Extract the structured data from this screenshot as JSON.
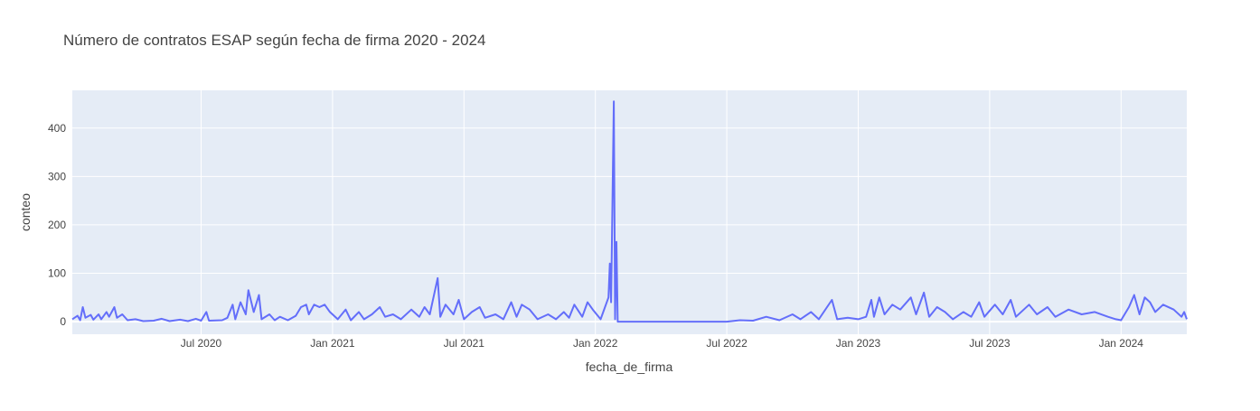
{
  "chart_data": {
    "type": "line",
    "title": "Número de contratos ESAP según fecha de firma 2020 - 2024",
    "x_label": "fecha_de_firma",
    "y_label": "conteo",
    "xlim": [
      2020.01,
      2024.25
    ],
    "xticks": [
      {
        "value": 2020.5,
        "label": "Jul 2020"
      },
      {
        "value": 2021,
        "label": "Jan 2021"
      },
      {
        "value": 2021.5,
        "label": "Jul 2021"
      },
      {
        "value": 2022,
        "label": "Jan 2022"
      },
      {
        "value": 2022.5,
        "label": "Jul 2022"
      },
      {
        "value": 2023,
        "label": "Jan 2023"
      },
      {
        "value": 2023.5,
        "label": "Jul 2023"
      },
      {
        "value": 2024,
        "label": "Jan 2024"
      }
    ],
    "ylim": [
      -26,
      478
    ],
    "yticks": [
      0,
      100,
      200,
      300,
      400
    ],
    "grid": true,
    "series": [
      {
        "color": "#636efa",
        "x": [
          2020.01,
          2020.03,
          2020.04,
          2020.05,
          2020.06,
          2020.08,
          2020.09,
          2020.11,
          2020.12,
          2020.14,
          2020.15,
          2020.17,
          2020.18,
          2020.2,
          2020.22,
          2020.25,
          2020.28,
          2020.32,
          2020.35,
          2020.38,
          2020.42,
          2020.45,
          2020.48,
          2020.5,
          2020.52,
          2020.53,
          2020.58,
          2020.6,
          2020.62,
          2020.63,
          2020.65,
          2020.67,
          2020.68,
          2020.7,
          2020.72,
          2020.73,
          2020.76,
          2020.78,
          2020.8,
          2020.83,
          2020.86,
          2020.88,
          2020.9,
          2020.91,
          2020.93,
          2020.95,
          2020.97,
          2020.99,
          2021.02,
          2021.05,
          2021.07,
          2021.1,
          2021.12,
          2021.15,
          2021.18,
          2021.2,
          2021.23,
          2021.26,
          2021.3,
          2021.33,
          2021.35,
          2021.37,
          2021.4,
          2021.41,
          2021.43,
          2021.46,
          2021.48,
          2021.5,
          2021.53,
          2021.56,
          2021.58,
          2021.62,
          2021.65,
          2021.68,
          2021.7,
          2021.72,
          2021.75,
          2021.78,
          2021.82,
          2021.85,
          2021.88,
          2021.9,
          2021.92,
          2021.95,
          2021.97,
          2021.99,
          2022.02,
          2022.03,
          2022.05,
          2022.055,
          2022.06,
          2022.07,
          2022.075,
          2022.08,
          2022.085,
          2022.3,
          2022.5,
          2022.55,
          2022.6,
          2022.65,
          2022.7,
          2022.75,
          2022.78,
          2022.82,
          2022.85,
          2022.9,
          2022.92,
          2022.96,
          2023.0,
          2023.03,
          2023.05,
          2023.06,
          2023.08,
          2023.1,
          2023.13,
          2023.16,
          2023.2,
          2023.22,
          2023.25,
          2023.27,
          2023.3,
          2023.33,
          2023.36,
          2023.4,
          2023.43,
          2023.46,
          2023.48,
          2023.52,
          2023.55,
          2023.58,
          2023.6,
          2023.65,
          2023.68,
          2023.72,
          2023.75,
          2023.8,
          2023.85,
          2023.9,
          2023.95,
          2023.98,
          2024.0,
          2024.03,
          2024.05,
          2024.07,
          2024.09,
          2024.11,
          2024.13,
          2024.16,
          2024.2,
          2024.23,
          2024.24,
          2024.25
        ],
        "values": [
          5,
          12,
          3,
          30,
          8,
          14,
          4,
          15,
          5,
          20,
          10,
          30,
          8,
          15,
          3,
          5,
          1,
          2,
          6,
          1,
          4,
          1,
          6,
          2,
          20,
          2,
          3,
          8,
          35,
          5,
          40,
          15,
          65,
          20,
          55,
          5,
          15,
          3,
          10,
          3,
          12,
          30,
          35,
          15,
          35,
          30,
          35,
          20,
          5,
          25,
          3,
          20,
          5,
          15,
          30,
          10,
          15,
          5,
          25,
          10,
          30,
          15,
          90,
          10,
          35,
          15,
          45,
          5,
          20,
          30,
          8,
          15,
          5,
          40,
          10,
          35,
          25,
          5,
          15,
          5,
          20,
          8,
          35,
          10,
          40,
          25,
          5,
          20,
          50,
          120,
          40,
          455,
          5,
          165,
          0,
          0,
          0,
          3,
          2,
          10,
          3,
          15,
          5,
          20,
          5,
          45,
          5,
          8,
          5,
          10,
          45,
          10,
          50,
          15,
          35,
          25,
          50,
          15,
          60,
          10,
          30,
          20,
          5,
          20,
          10,
          40,
          10,
          35,
          15,
          45,
          10,
          35,
          15,
          30,
          10,
          25,
          15,
          20,
          10,
          5,
          3,
          30,
          55,
          15,
          50,
          40,
          20,
          35,
          25,
          10,
          20,
          5
        ]
      }
    ]
  }
}
